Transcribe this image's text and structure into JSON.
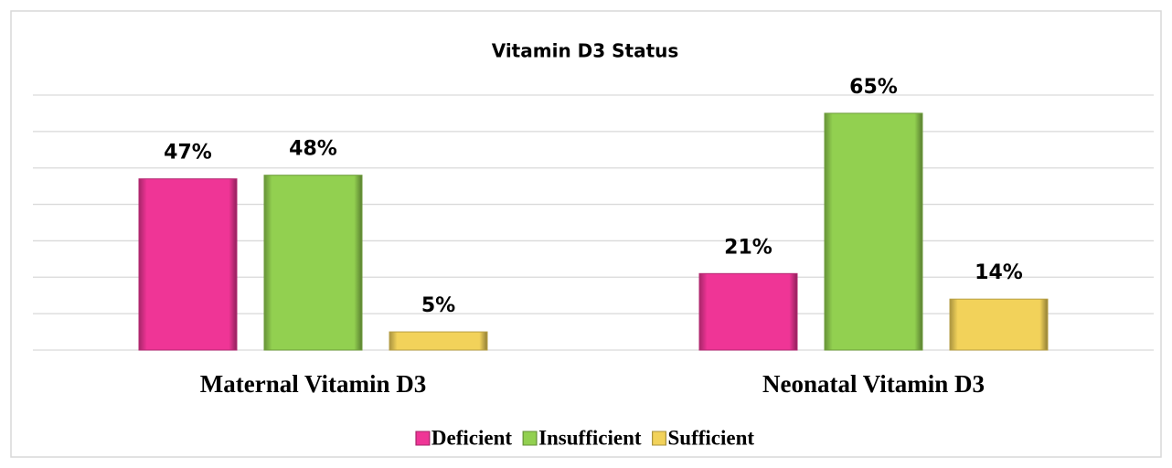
{
  "chart_data": {
    "type": "bar",
    "title": "Vitamin D3 Status",
    "categories": [
      "Maternal Vitamin D3",
      "Neonatal Vitamin D3"
    ],
    "series": [
      {
        "name": "Deficient",
        "color": "#ef3596",
        "values": [
          47,
          21
        ],
        "value_labels": [
          "47%",
          "21%"
        ]
      },
      {
        "name": "Insufficient",
        "color": "#92d050",
        "values": [
          48,
          65
        ],
        "value_labels": [
          "48%",
          "65%"
        ]
      },
      {
        "name": "Sufficient",
        "color": "#f2d25a",
        "values": [
          5,
          14
        ],
        "value_labels": [
          "5%",
          "14%"
        ]
      }
    ],
    "ylim": [
      0,
      70
    ],
    "yticks": [
      0,
      10,
      20,
      30,
      40,
      50,
      60,
      70
    ],
    "grid": true,
    "legend": "bottom"
  }
}
